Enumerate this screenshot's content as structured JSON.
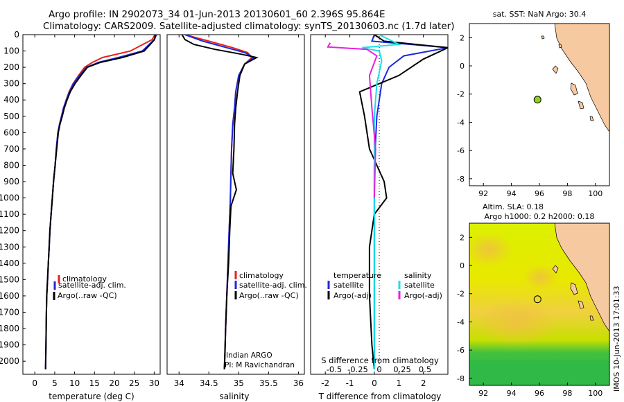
{
  "title": {
    "line1": "Argo profile: IN 2902073_34 01-Jun-2013 20130601_60 2.396S 95.864E",
    "line2": "Climatology: CARS2009. Satellite-adjusted climatology: synTS_20130603.nc (1.7d later)"
  },
  "colors": {
    "clim": "#e8201a",
    "sat": "#1a28e0",
    "argo": "#000000",
    "sat_s": "#18e0e8",
    "argo_s": "#e820e0",
    "land": "#f7c9a0",
    "ocean_yellow": "#d8f000",
    "ocean_green": "#30c040",
    "marker": "#8ed020"
  },
  "chart_data": [
    {
      "id": "temperature",
      "type": "line",
      "xlabel": "temperature (deg C)",
      "xticks": [
        0,
        5,
        10,
        15,
        20,
        25,
        30
      ],
      "xlim": [
        -3,
        31.5
      ],
      "ylim": [
        0,
        2080
      ],
      "yticks": [
        0,
        100,
        200,
        300,
        400,
        500,
        600,
        700,
        800,
        900,
        1000,
        1100,
        1200,
        1300,
        1400,
        1500,
        1600,
        1700,
        1800,
        1900,
        2000
      ],
      "series": [
        {
          "name": "climatology",
          "color": "#e8201a",
          "x": [
            30.2,
            29.5,
            24,
            17,
            14.5,
            12.5,
            11,
            9.6,
            8.6,
            7.9,
            7.2,
            6.7,
            6.2,
            5.8,
            5.4,
            5.1,
            4.7,
            4.4,
            4.1,
            3.8,
            3.6,
            3.4,
            3.2,
            3.0,
            2.9,
            2.8,
            2.7
          ],
          "y": [
            0,
            30,
            100,
            140,
            170,
            200,
            250,
            300,
            350,
            400,
            450,
            500,
            550,
            600,
            700,
            800,
            900,
            1000,
            1100,
            1200,
            1300,
            1400,
            1500,
            1600,
            1700,
            1900,
            2050
          ]
        },
        {
          "name": "satellite-adj. clim.",
          "color": "#1a28e0",
          "x": [
            30.6,
            30,
            27,
            21,
            16,
            13,
            11.2,
            9.7,
            8.7,
            7.9,
            7.2,
            6.7,
            6.2,
            5.8,
            5.4,
            5.1,
            4.7,
            4.4,
            4.1,
            3.8,
            3.6,
            3.4,
            3.2,
            3.0,
            2.9,
            2.8,
            2.7
          ],
          "y": [
            0,
            30,
            100,
            140,
            170,
            200,
            250,
            300,
            350,
            400,
            450,
            500,
            550,
            600,
            700,
            800,
            900,
            1000,
            1100,
            1200,
            1300,
            1400,
            1500,
            1600,
            1700,
            1900,
            2050
          ]
        },
        {
          "name": "Argo(..raw -QC)",
          "color": "#000000",
          "x": [
            30.3,
            30.1,
            27.5,
            22,
            16.5,
            13.2,
            11.6,
            10.1,
            8.9,
            8.1,
            7.4,
            6.9,
            6.3,
            5.9,
            5.5,
            5.1,
            4.7,
            4.4,
            4.1,
            3.8,
            3.6,
            3.4,
            3.2,
            3.0,
            2.9,
            2.8,
            2.7
          ],
          "y": [
            0,
            30,
            100,
            140,
            170,
            200,
            250,
            300,
            350,
            400,
            450,
            500,
            550,
            600,
            700,
            800,
            900,
            1000,
            1100,
            1200,
            1300,
            1400,
            1500,
            1600,
            1700,
            1900,
            2050
          ]
        }
      ],
      "legend": [
        "climatology",
        "satellite-adj. clim.",
        "Argo(..raw -QC)"
      ]
    },
    {
      "id": "salinity",
      "type": "line",
      "xlabel": "salinity",
      "xticks": [
        34,
        34.5,
        35,
        35.5,
        36
      ],
      "xticklabels": [
        "34",
        "34.5",
        "35",
        "35.5",
        "36"
      ],
      "xlim": [
        33.8,
        36.1
      ],
      "ylim": [
        0,
        2080
      ],
      "series": [
        {
          "name": "climatology",
          "color": "#e8201a",
          "x": [
            34.1,
            34.5,
            34.9,
            35.15,
            35.22,
            35.1,
            35.0,
            34.95,
            34.93,
            34.9,
            34.88,
            34.87,
            34.86,
            34.84,
            34.82,
            34.8,
            34.78,
            34.77,
            34.76
          ],
          "y": [
            0,
            40,
            80,
            110,
            140,
            180,
            250,
            350,
            450,
            550,
            700,
            850,
            1000,
            1200,
            1400,
            1600,
            1800,
            1950,
            2050
          ]
        },
        {
          "name": "satellite-adj. clim.",
          "color": "#1a28e0",
          "x": [
            34.1,
            34.4,
            34.8,
            35.1,
            35.25,
            35.1,
            35.0,
            34.95,
            34.93,
            34.9,
            34.88,
            34.87,
            34.86,
            34.84,
            34.82,
            34.8,
            34.78,
            34.77,
            34.76
          ],
          "y": [
            0,
            40,
            80,
            110,
            140,
            180,
            250,
            350,
            450,
            550,
            700,
            850,
            1000,
            1200,
            1400,
            1600,
            1800,
            1950,
            2050
          ]
        },
        {
          "name": "Argo(..raw -QC)",
          "color": "#000000",
          "x": [
            34.05,
            34.1,
            34.25,
            34.6,
            35.05,
            35.3,
            35.1,
            35.02,
            34.98,
            34.95,
            34.93,
            34.92,
            34.9,
            34.96,
            34.87,
            34.85,
            34.83,
            34.8,
            34.78,
            34.76
          ],
          "y": [
            0,
            30,
            60,
            90,
            120,
            140,
            180,
            250,
            350,
            450,
            550,
            700,
            850,
            950,
            1050,
            1200,
            1400,
            1600,
            1800,
            2050
          ]
        }
      ],
      "legend": [
        "climatology",
        "satellite-adj. clim.",
        "Argo(..raw -QC)"
      ],
      "annotation": [
        "Indian ARGO",
        "PI: M Ravichandran"
      ]
    },
    {
      "id": "difference",
      "type": "line",
      "xlabel": "T difference from climatology",
      "xticks": [
        -2,
        -1,
        0,
        1,
        2
      ],
      "top_label": "S difference from climatology",
      "top_ticks": [
        "-0.5",
        "-0.25",
        "0",
        "0.25",
        "0.5"
      ],
      "xlim": [
        -2.6,
        3.0
      ],
      "ylim": [
        0,
        2080
      ],
      "series": [
        {
          "name": "temperature satellite",
          "color": "#1a28e0",
          "x": [
            0,
            -0.1,
            1.5,
            3,
            1.2,
            0.6,
            0.3,
            0.1,
            0,
            0
          ],
          "y": [
            0,
            40,
            60,
            80,
            130,
            200,
            300,
            500,
            800,
            2050
          ]
        },
        {
          "name": "temperature Argo(-adj)",
          "color": "#000000",
          "x": [
            0,
            0.4,
            3,
            2.0,
            1.0,
            -0.6,
            -0.4,
            -0.2,
            0.1,
            0.4,
            0.5,
            0,
            -0.2,
            -0.2,
            -0.1,
            0
          ],
          "y": [
            0,
            40,
            80,
            150,
            250,
            350,
            500,
            700,
            800,
            900,
            1000,
            1100,
            1300,
            1600,
            1900,
            2050
          ]
        },
        {
          "name": "salinity satellite",
          "color": "#18e0e8",
          "x": [
            0.2,
            1.0,
            -0.5,
            0.2,
            0.3,
            0.1,
            0,
            0,
            0
          ],
          "y": [
            0,
            60,
            80,
            100,
            160,
            300,
            500,
            900,
            2050
          ]
        },
        {
          "name": "salinity Argo(-adj)",
          "color": "#e820e0",
          "x": [
            -1.8,
            -1.9,
            -0.3,
            0.1,
            -0.2,
            -0.1,
            0.05,
            0.0
          ],
          "y": [
            50,
            75,
            90,
            130,
            250,
            450,
            700,
            1000
          ]
        }
      ],
      "legend": {
        "temperature": "temperature",
        "salinity": "salinity",
        "sat": "satellite",
        "argo": "Argo(-adj)"
      }
    },
    {
      "id": "map_sst",
      "type": "scatter",
      "title": "sat. SST: NaN Argo: 30.4",
      "xticks": [
        92,
        94,
        96,
        98,
        100
      ],
      "yticks": [
        2,
        0,
        -2,
        -4,
        -6,
        -8
      ],
      "xlim": [
        91,
        101
      ],
      "ylim": [
        -8.5,
        3
      ],
      "point": {
        "lon": 95.864,
        "lat": -2.396
      }
    },
    {
      "id": "map_sla",
      "type": "heatmap",
      "title1": "Altim. SLA: 0.18",
      "title2": "Argo h1000: 0.2 h2000: 0.18",
      "xticks": [
        92,
        94,
        96,
        98,
        100
      ],
      "yticks": [
        2,
        0,
        -2,
        -4,
        -6,
        -8
      ],
      "xlim": [
        91,
        101
      ],
      "ylim": [
        -8.5,
        3
      ],
      "point": {
        "lon": 95.864,
        "lat": -2.396
      }
    }
  ],
  "side_label": "IMOS 10-Jun-2013 17:01:33"
}
